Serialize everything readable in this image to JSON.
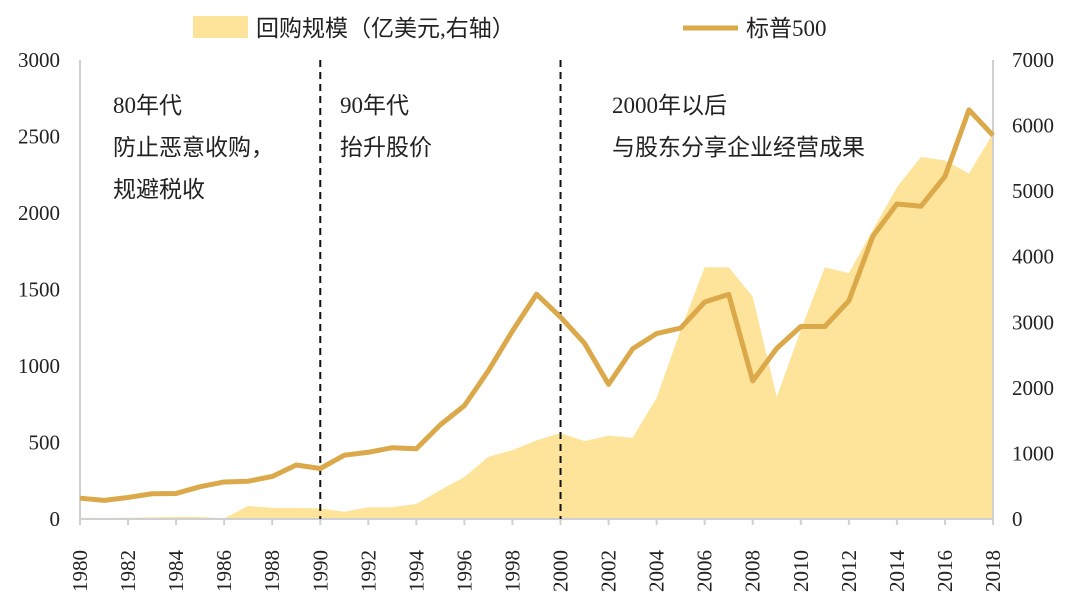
{
  "chart_data": {
    "type": "line+area",
    "title": "",
    "x": [
      1980,
      1981,
      1982,
      1983,
      1984,
      1985,
      1986,
      1987,
      1988,
      1989,
      1990,
      1991,
      1992,
      1993,
      1994,
      1995,
      1996,
      1997,
      1998,
      1999,
      2000,
      2001,
      2002,
      2003,
      2004,
      2005,
      2006,
      2007,
      2008,
      2009,
      2010,
      2011,
      2012,
      2013,
      2014,
      2015,
      2016,
      2017,
      2018
    ],
    "xticks": [
      "1980",
      "1982",
      "1984",
      "1986",
      "1988",
      "1990",
      "1992",
      "1994",
      "1996",
      "1998",
      "2000",
      "2002",
      "2004",
      "2006",
      "2008",
      "2010",
      "2012",
      "2014",
      "2016",
      "2018"
    ],
    "series": [
      {
        "name": "回购规模（亿美元,右轴）",
        "type": "area",
        "axis": "right",
        "color": "#fde49a",
        "values": [
          20,
          15,
          20,
          25,
          30,
          30,
          10,
          200,
          170,
          170,
          160,
          110,
          180,
          180,
          230,
          440,
          640,
          950,
          1050,
          1200,
          1310,
          1190,
          1270,
          1240,
          1850,
          2880,
          3840,
          3840,
          3390,
          1860,
          2880,
          3840,
          3750,
          4410,
          5060,
          5520,
          5470,
          5270,
          5880
        ]
      },
      {
        "name": "标普500",
        "type": "line",
        "axis": "left",
        "color": "#dba84a",
        "values": [
          136,
          122,
          141,
          165,
          167,
          211,
          242,
          247,
          278,
          353,
          330,
          417,
          436,
          466,
          459,
          616,
          741,
          970,
          1229,
          1469,
          1320,
          1148,
          880,
          1112,
          1212,
          1248,
          1418,
          1468,
          903,
          1115,
          1258,
          1258,
          1426,
          1848,
          2059,
          2044,
          2239,
          2674,
          2507
        ]
      }
    ],
    "left_axis": {
      "ylim": [
        0,
        3000
      ],
      "ticks": [
        "0",
        "500",
        "1000",
        "1500",
        "2000",
        "2500",
        "3000"
      ]
    },
    "right_axis": {
      "ylim": [
        0,
        7000
      ],
      "ticks": [
        "0",
        "1000",
        "2000",
        "3000",
        "4000",
        "5000",
        "6000",
        "7000"
      ]
    },
    "dividers": [
      1990,
      2000
    ],
    "legend_position": "top",
    "annotations": [
      {
        "lines": [
          "80年代",
          "防止恶意收购，",
          "规避税收"
        ]
      },
      {
        "lines": [
          "90年代",
          "抬升股价"
        ]
      },
      {
        "lines": [
          "2000年以后",
          "与股东分享企业经营成果"
        ]
      }
    ]
  }
}
